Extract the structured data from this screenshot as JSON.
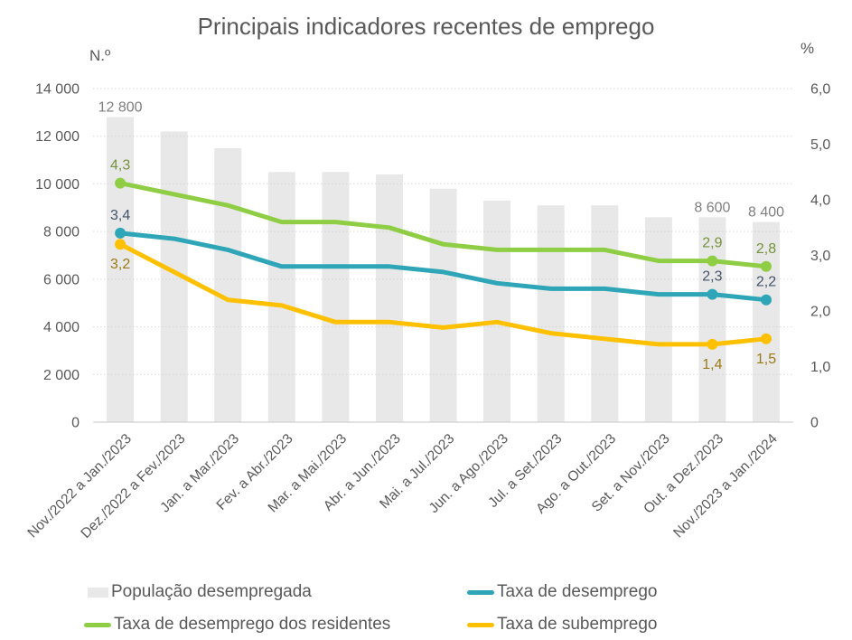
{
  "title": "Principais indicadores recentes de emprego",
  "chart_data": {
    "type": "combo",
    "grid": "horizontal-dotted",
    "categories": [
      "Nov./2022 a Jan./2023",
      "Dez./2022 a Fev./2023",
      "Jan. a Mar./2023",
      "Fev. a Abr./2023",
      "Mar. a Mai./2023",
      "Abr. a Jun./2023",
      "Mai. a Jul./2023",
      "Jun. a Ago./2023",
      "Jul. a Set./2023",
      "Ago. a Out./2023",
      "Set. a Nov./2023",
      "Out. a Dez./2023",
      "Nov./2023 a Jan./2024"
    ],
    "left_axis": {
      "unit": "N.º",
      "min": 0,
      "max": 14000,
      "step": 2000,
      "ticks": [
        "0",
        "2 000",
        "4 000",
        "6 000",
        "8 000",
        "10 000",
        "12 000",
        "14 000"
      ]
    },
    "right_axis": {
      "unit": "%",
      "min": 0,
      "max": 6.0,
      "step": 1.0,
      "ticks": [
        "0",
        "1,0",
        "2,0",
        "3,0",
        "4,0",
        "5,0",
        "6,0"
      ]
    },
    "series": [
      {
        "name": "População desempregada",
        "type": "bar",
        "axis": "left",
        "color": "#E8E8E8",
        "label_color": "#7F7F7F",
        "values": [
          12800,
          12200,
          11500,
          10500,
          10500,
          10400,
          9800,
          9300,
          9100,
          9100,
          8600,
          8600,
          8400
        ],
        "point_labels": {
          "0": "12 800",
          "11": "8 600",
          "12": "8 400"
        }
      },
      {
        "name": "Taxa de desemprego",
        "type": "line",
        "axis": "right",
        "color": "#2EA6B8",
        "label_color": "#44546A",
        "label_position": "above",
        "values": [
          3.4,
          3.3,
          3.1,
          2.8,
          2.8,
          2.8,
          2.7,
          2.5,
          2.4,
          2.4,
          2.3,
          2.3,
          2.2
        ],
        "point_labels": {
          "0": "3,4",
          "11": "2,3",
          "12": "2,2"
        }
      },
      {
        "name": "Taxa de desemprego dos residentes",
        "type": "line",
        "axis": "right",
        "color": "#8FCE44",
        "label_color": "#76923C",
        "label_position": "above",
        "values": [
          4.3,
          4.1,
          3.9,
          3.6,
          3.6,
          3.5,
          3.2,
          3.1,
          3.1,
          3.1,
          2.9,
          2.9,
          2.8
        ],
        "point_labels": {
          "0": "4,3",
          "11": "2,9",
          "12": "2,8"
        }
      },
      {
        "name": "Taxa de subemprego",
        "type": "line",
        "axis": "right",
        "color": "#FFC000",
        "label_color": "#9B7A15",
        "label_position": "below",
        "values": [
          3.2,
          2.7,
          2.2,
          2.1,
          1.8,
          1.8,
          1.7,
          1.8,
          1.6,
          1.5,
          1.4,
          1.4,
          1.5
        ],
        "point_labels": {
          "0": "3,2",
          "11": "1,4",
          "12": "1,5"
        }
      }
    ]
  },
  "legend": {
    "position": "bottom",
    "items": [
      {
        "label": "População desempregada",
        "series": 0,
        "marker": "bar"
      },
      {
        "label": "Taxa de desemprego",
        "series": 1,
        "marker": "line"
      },
      {
        "label": "Taxa de desemprego dos residentes",
        "series": 2,
        "marker": "line"
      },
      {
        "label": "Taxa de subemprego",
        "series": 3,
        "marker": "line"
      }
    ]
  }
}
